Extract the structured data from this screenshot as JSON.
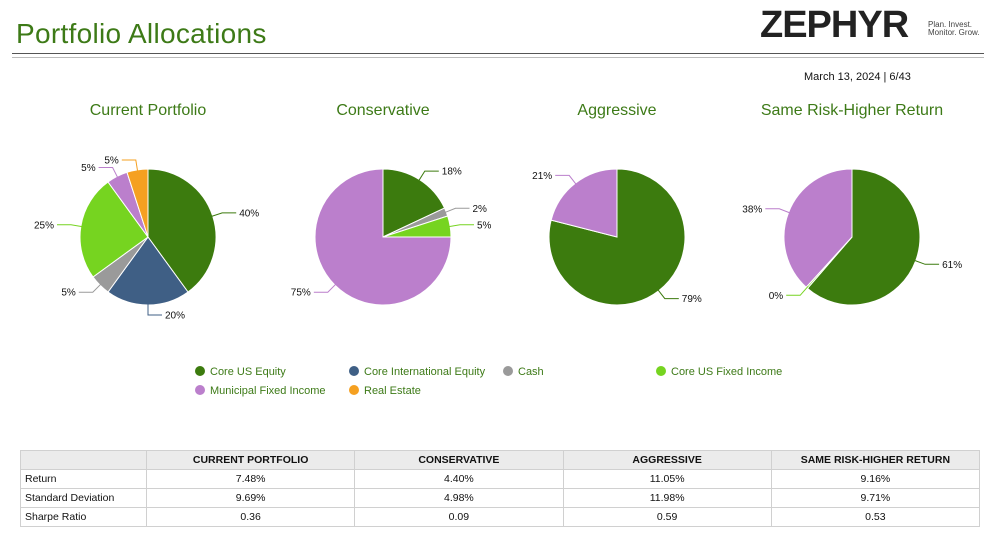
{
  "page": {
    "title": "Portfolio Allocations",
    "date": "March 13, 2024 | 6/43"
  },
  "brand": {
    "name": "ZEPHYR",
    "tagline_1": "Plan. Invest.",
    "tagline_2": "Monitor. Grow.",
    "accent": "#3d7a17"
  },
  "colors": {
    "Core US Equity": "#3c7b0e",
    "Core International Equity": "#3f5f85",
    "Cash": "#9a9a9a",
    "Core US Fixed Income": "#76d420",
    "Municipal Fixed Income": "#bb7fcc",
    "Real Estate": "#f5a021"
  },
  "legend": [
    {
      "label": "Core US Equity",
      "icon": "dot"
    },
    {
      "label": "Core International Equity",
      "icon": "dot"
    },
    {
      "label": "Cash",
      "icon": "dot"
    },
    {
      "label": "Core US Fixed Income",
      "icon": "dot"
    },
    {
      "label": "Municipal Fixed Income",
      "icon": "dot"
    },
    {
      "label": "Real Estate",
      "icon": "dot"
    }
  ],
  "chart_data": [
    {
      "type": "pie",
      "title": "Current Portfolio",
      "slices": [
        {
          "name": "Core US Equity",
          "value": 40,
          "label": "40%"
        },
        {
          "name": "Core International Equity",
          "value": 20,
          "label": "20%"
        },
        {
          "name": "Cash",
          "value": 5,
          "label": "5%"
        },
        {
          "name": "Core US Fixed Income",
          "value": 25,
          "label": "25%"
        },
        {
          "name": "Municipal Fixed Income",
          "value": 5,
          "label": "5%"
        },
        {
          "name": "Real Estate",
          "value": 5,
          "label": "5%"
        }
      ]
    },
    {
      "type": "pie",
      "title": "Conservative",
      "slices": [
        {
          "name": "Core US Equity",
          "value": 18,
          "label": "18%"
        },
        {
          "name": "Cash",
          "value": 2,
          "label": "2%"
        },
        {
          "name": "Core US Fixed Income",
          "value": 5,
          "label": "5%"
        },
        {
          "name": "Municipal Fixed Income",
          "value": 75,
          "label": "75%"
        }
      ]
    },
    {
      "type": "pie",
      "title": "Aggressive",
      "slices": [
        {
          "name": "Core US Equity",
          "value": 79,
          "label": "79%"
        },
        {
          "name": "Municipal Fixed Income",
          "value": 21,
          "label": "21%"
        }
      ]
    },
    {
      "type": "pie",
      "title": "Same Risk-Higher Return",
      "slices": [
        {
          "name": "Core US Equity",
          "value": 61,
          "label": "61%"
        },
        {
          "name": "Core US Fixed Income",
          "value": 0.4,
          "label": "0%"
        },
        {
          "name": "Municipal Fixed Income",
          "value": 38,
          "label": "38%"
        }
      ]
    }
  ],
  "table": {
    "headers": [
      "",
      "CURRENT PORTFOLIO",
      "CONSERVATIVE",
      "AGGRESSIVE",
      "SAME RISK-HIGHER RETURN"
    ],
    "rows": [
      [
        "Return",
        "7.48%",
        "4.40%",
        "11.05%",
        "9.16%"
      ],
      [
        "Standard Deviation",
        "9.69%",
        "4.98%",
        "11.98%",
        "9.71%"
      ],
      [
        "Sharpe Ratio",
        "0.36",
        "0.09",
        "0.59",
        "0.53"
      ]
    ]
  }
}
